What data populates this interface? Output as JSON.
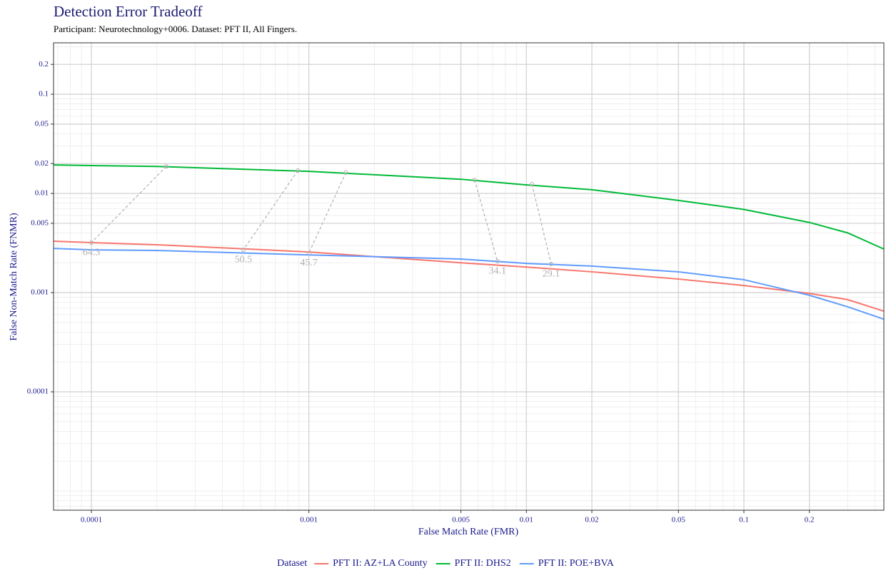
{
  "chart_data": {
    "type": "line",
    "title": "Detection Error Tradeoff",
    "subtitle": "Participant: Neurotechnology+0006. Dataset: PFT II, All Fingers.",
    "x_label": "False Match Rate (FMR)",
    "y_label": "False Non-Match Rate (FNMR)",
    "legend_title": "Dataset",
    "legend_position": "bottom",
    "log_x": true,
    "log_y": true,
    "grid": true,
    "xlim": [
      6.7e-05,
      0.44
    ],
    "ylim": [
      6.4e-06,
      0.33
    ],
    "xticks": [
      0.0001,
      0.001,
      0.005,
      0.01,
      0.02,
      0.05,
      0.1,
      0.2
    ],
    "yticks": [
      0.0001,
      0.001,
      0.005,
      0.01,
      0.02,
      0.05,
      0.1,
      0.2
    ],
    "x": [
      6.7e-05,
      0.0001,
      0.0002,
      0.001,
      0.005,
      0.01,
      0.02,
      0.05,
      0.1,
      0.2,
      0.3,
      0.44
    ],
    "series": [
      {
        "name": "PFT II: AZ+LA County",
        "color": "#f8766d",
        "values": [
          0.0033,
          0.00319,
          0.00304,
          0.00257,
          0.002,
          0.00181,
          0.00162,
          0.00137,
          0.00118,
          0.00098,
          0.00085,
          0.00065
        ]
      },
      {
        "name": "PFT II: DHS2",
        "color": "#00ba38",
        "values": [
          0.0194,
          0.0191,
          0.0187,
          0.0167,
          0.0139,
          0.0122,
          0.0109,
          0.0085,
          0.0069,
          0.0051,
          0.004,
          0.00275
        ]
      },
      {
        "name": "PFT II: POE+BVA",
        "color": "#619cff",
        "values": [
          0.00279,
          0.0027,
          0.00266,
          0.0024,
          0.00218,
          0.00197,
          0.00185,
          0.00162,
          0.00135,
          0.00094,
          0.00072,
          0.00054
        ]
      }
    ],
    "annotations": [
      {
        "x": [
          0.000221,
          0.0001
        ],
        "y": [
          0.0187,
          0.00319
        ],
        "label": 64.3
      },
      {
        "x": [
          0.00089,
          0.0005
        ],
        "y": [
          0.017,
          0.0027
        ],
        "label": 50.5
      },
      {
        "x": [
          0.00148,
          0.001
        ],
        "y": [
          0.0163,
          0.0025
        ],
        "label": 45.7
      },
      {
        "x": [
          0.00578,
          0.00736
        ],
        "y": [
          0.0137,
          0.00207
        ],
        "label": 34.1
      },
      {
        "x": [
          0.0106,
          0.013
        ],
        "y": [
          0.0124,
          0.00194
        ],
        "label": 29.1
      }
    ]
  }
}
